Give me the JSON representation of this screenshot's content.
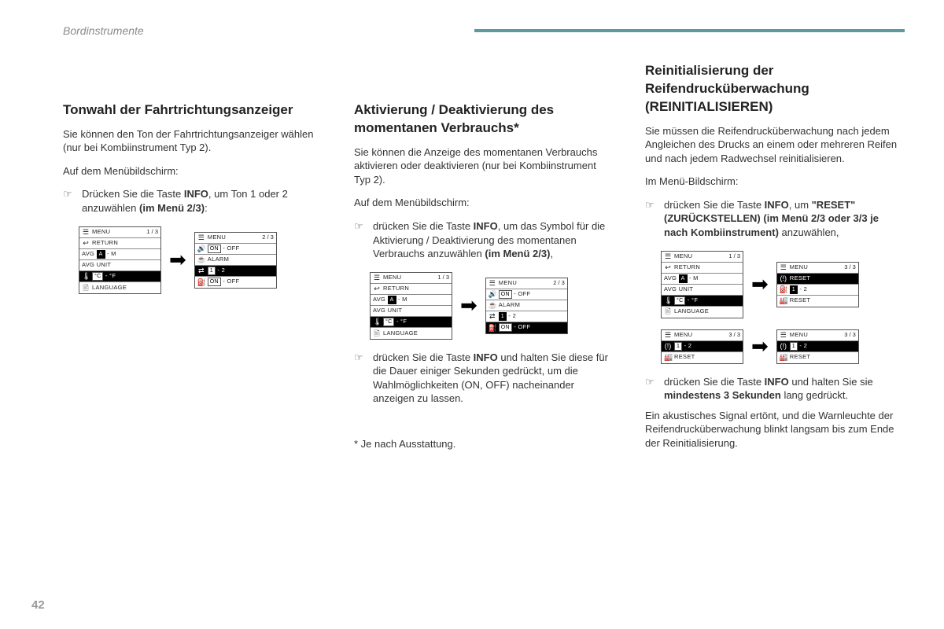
{
  "header": {
    "section": "Bordinstrumente"
  },
  "page_number": "42",
  "col1": {
    "title": "Tonwahl der Fahrtrichtungsanzeiger",
    "intro": "Sie können den Ton der Fahrtrichtungsanzeiger wählen (nur bei Kombiinstrument Typ 2).",
    "lead": "Auf dem Menübildschirm:",
    "b1_a": "Drücken Sie die Taste ",
    "b1_info": "INFO",
    "b1_b": ", um Ton 1 oder 2 anzuwählen ",
    "b1_bold": "(im Menü 2/3)",
    "b1_c": ":"
  },
  "col2": {
    "title": "Aktivierung / Deaktivierung des momentanen Verbrauchs*",
    "intro": "Sie können die Anzeige des momentanen Verbrauchs aktivieren oder deaktivieren (nur bei Kombiinstrument Typ 2).",
    "lead": "Auf dem Menübildschirm:",
    "b1_a": "drücken Sie die Taste ",
    "b1_info": "INFO",
    "b1_b": ", um das Symbol für die Aktivierung / Deaktivierung des momentanen Verbrauchs anzuwählen ",
    "b1_bold": "(im Menü 2/3)",
    "b1_c": ",",
    "b2_a": "drücken Sie die Taste ",
    "b2_info": "INFO",
    "b2_b": " und halten Sie diese für die Dauer einiger Sekunden gedrückt, um die Wahlmöglichkeiten (ON, OFF) nacheinander anzeigen zu lassen.",
    "footnote": "* Je nach Ausstattung."
  },
  "col3": {
    "title": "Reinitialisierung der Reifendrucküberwachung (REINITIALISIEREN)",
    "intro": "Sie müssen die Reifendrucküberwachung nach jedem Angleichen des Drucks an einem oder mehreren Reifen und nach jedem Radwechsel reinitialisieren.",
    "lead": "Im Menü-Bildschirm:",
    "b1_a": "drücken Sie die Taste ",
    "b1_info": "INFO",
    "b1_b": ", um ",
    "b1_bold": "\"RESET\" (ZURÜCKSTELLEN) (im Menü 2/3 oder 3/3 je nach Kombiinstrument)",
    "b1_c": " anzuwählen,",
    "b2_a": "drücken Sie die Taste ",
    "b2_info": "INFO",
    "b2_b": " und halten Sie sie ",
    "b2_bold": "mindestens 3 Sekunden",
    "b2_c": " lang gedrückt.",
    "outro": "Ein akustisches Signal ertönt, und die Warnleuchte der Reifendrucküberwachung blinkt langsam bis zum Ende der Reinitialisierung."
  },
  "menu": {
    "m13": "MENU",
    "p13": "1 / 3",
    "p23": "2 / 3",
    "p33": "3 / 3",
    "return": "RETURN",
    "avg": "AVG",
    "a": "A",
    "m": "- M",
    "avgunit": "AVG UNIT",
    "c": "°C",
    "f": "- °F",
    "lang": "LANGUAGE",
    "on": "ON",
    "off": "- OFF",
    "alarm": "ALARM",
    "one": "1",
    "two": "- 2",
    "onoff2": "ON - OFF",
    "reset": "RESET"
  }
}
